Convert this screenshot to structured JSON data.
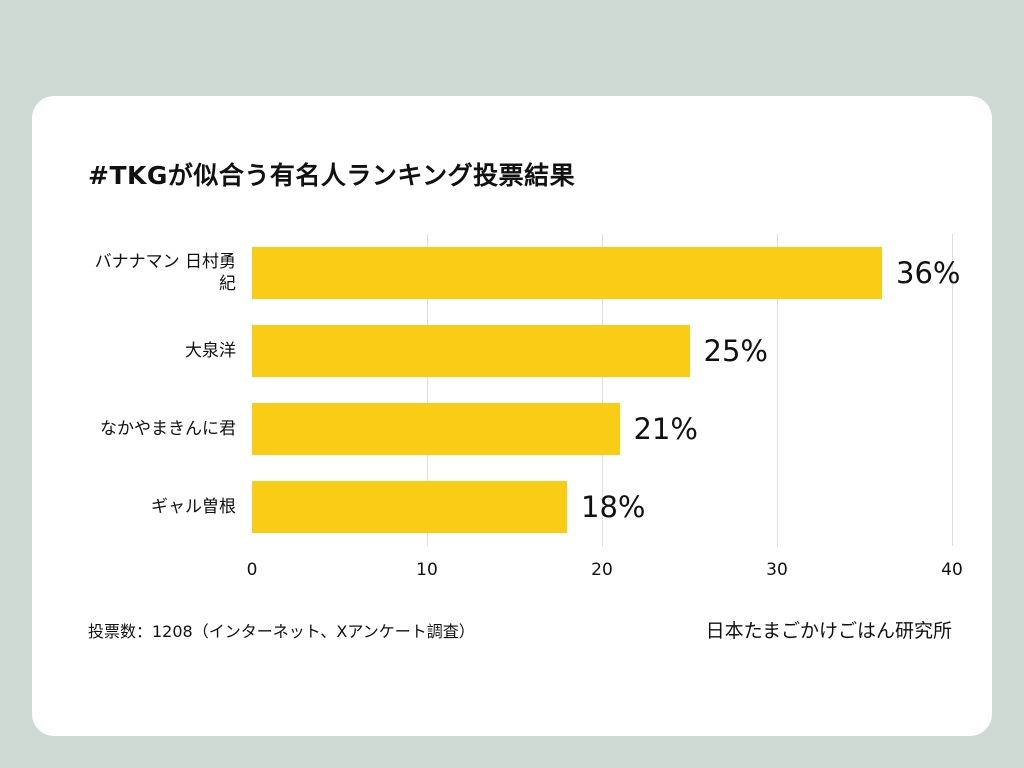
{
  "chart_data": {
    "type": "bar",
    "orientation": "horizontal",
    "title": "#TKGが似合う有名人ランキング投票結果",
    "categories": [
      "バナナマン 日村勇紀",
      "大泉洋",
      "なかやまきんに君",
      "ギャル曽根"
    ],
    "values": [
      36,
      25,
      21,
      18
    ],
    "value_labels": [
      "36%",
      "25%",
      "21%",
      "18%"
    ],
    "xlabel": "",
    "ylabel": "",
    "xlim": [
      0,
      40
    ],
    "ticks": [
      0,
      10,
      20,
      30,
      40
    ],
    "tick_labels": [
      "0",
      "10",
      "20",
      "30",
      "40"
    ],
    "grid": true,
    "legend": false
  },
  "footer": {
    "note": "投票数：1208（インターネット、Xアンケート調査）",
    "source": "日本たまごかけごはん研究所"
  },
  "colors": {
    "background": "#CFD9D3",
    "card": "#FFFFFF",
    "bar": "#F9CC16",
    "grid": "#DEDEDE",
    "text": "#111111"
  }
}
